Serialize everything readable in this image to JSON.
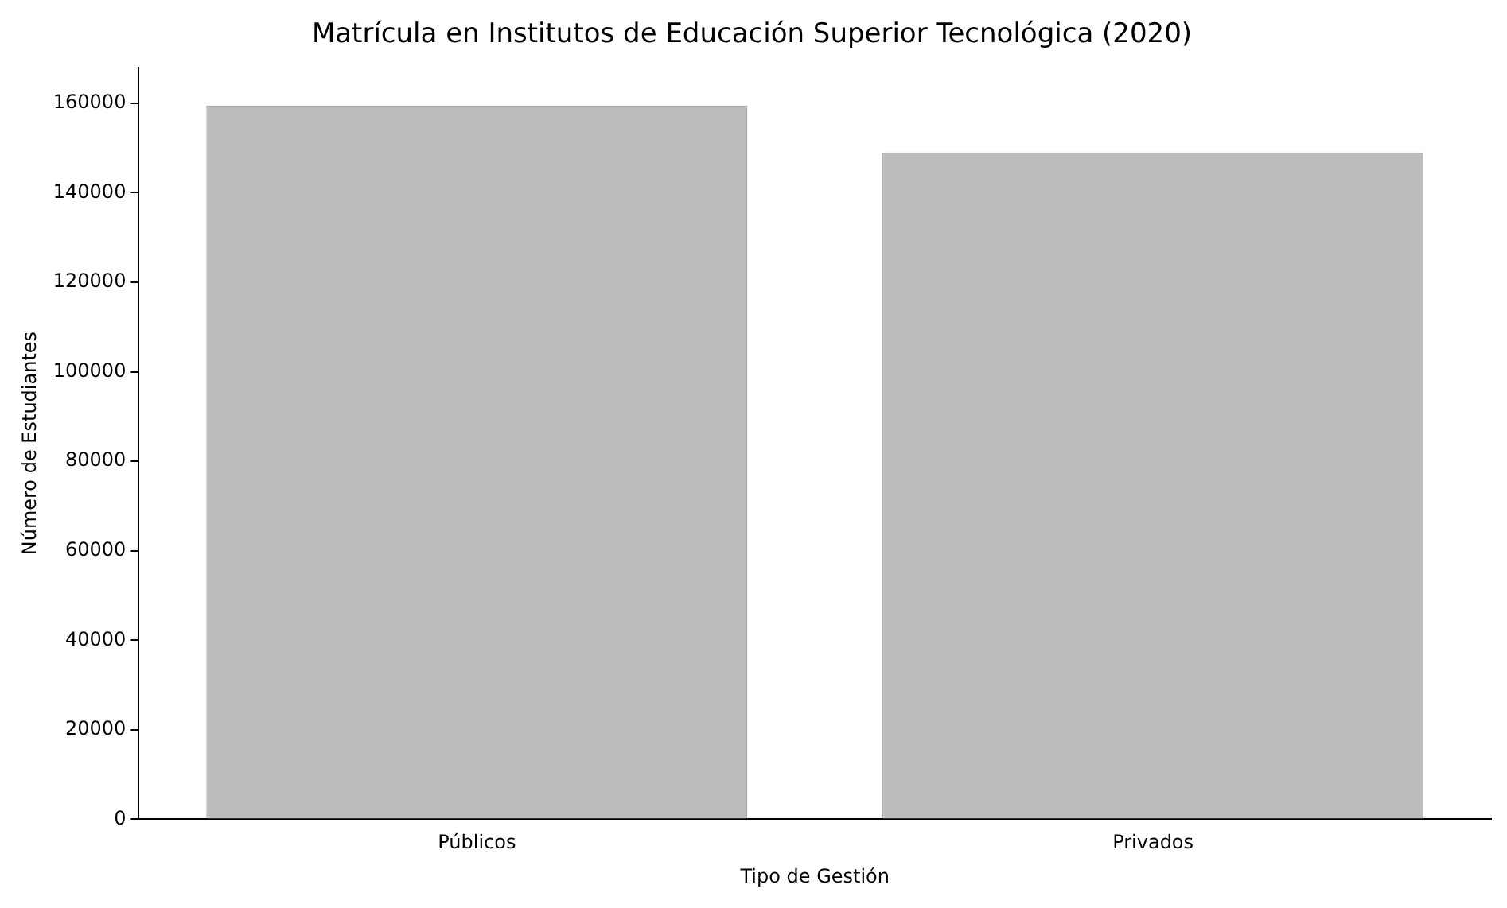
{
  "chart_data": {
    "type": "bar",
    "title": "Matrícula en Institutos de Educación Superior Tecnológica (2020)",
    "xlabel": "Tipo de Gestión",
    "ylabel": "Número de Estudiantes",
    "categories": [
      "Públicos",
      "Privados"
    ],
    "values": [
      159500,
      149000
    ],
    "color": "#bcbcbc",
    "ylim": [
      0,
      168000
    ],
    "yticks": [
      0,
      20000,
      40000,
      60000,
      80000,
      100000,
      120000,
      140000,
      160000
    ],
    "grid": false,
    "legend": false
  }
}
